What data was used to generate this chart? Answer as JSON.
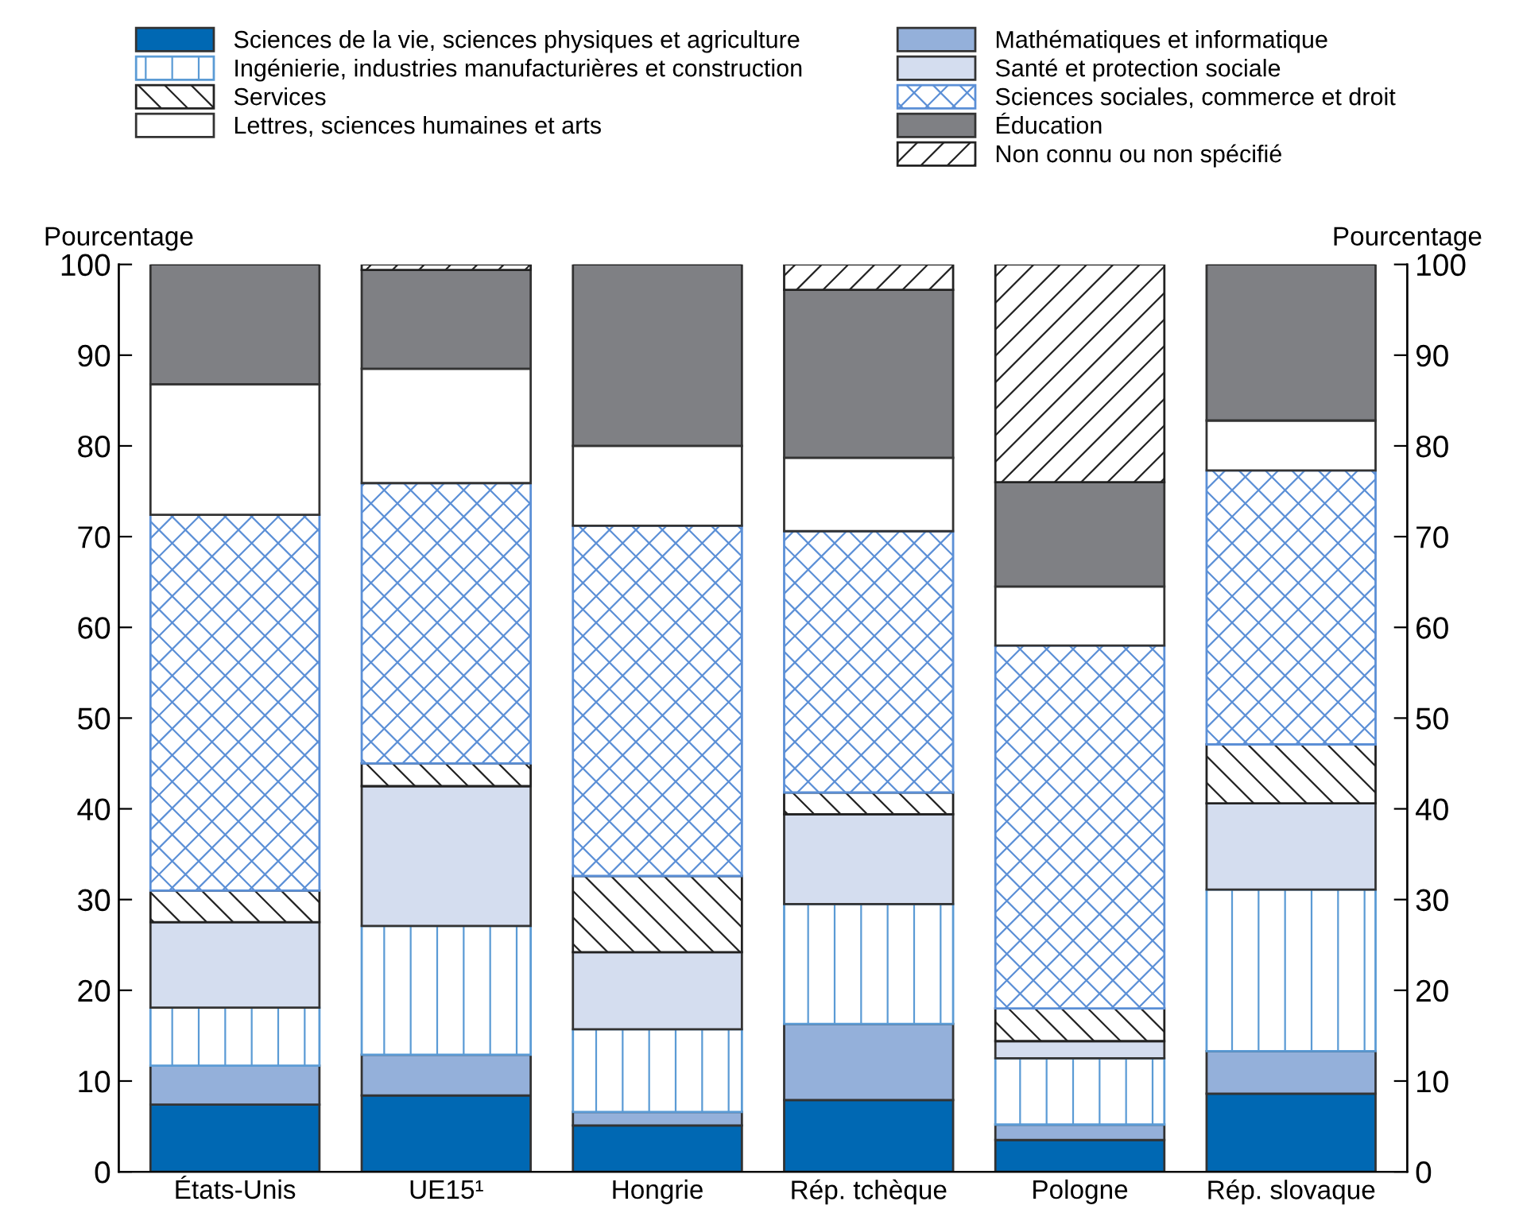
{
  "chart_data": {
    "type": "bar",
    "stacked": true,
    "categories": [
      "États-Unis",
      "UE15¹",
      "Hongrie",
      "Rép. tchèque",
      "Pologne",
      "Rép. slovaque"
    ],
    "ylabel": "Pourcentage",
    "y2label": "Pourcentage",
    "ylim": [
      0,
      100
    ],
    "yticks": [
      0,
      10,
      20,
      30,
      40,
      50,
      60,
      70,
      80,
      90,
      100
    ],
    "y2lim": [
      0,
      100
    ],
    "y2ticks": [
      0,
      10,
      20,
      30,
      40,
      50,
      60,
      70,
      80,
      90,
      100
    ],
    "legend": "top",
    "grid": false,
    "series": [
      {
        "name": "Sciences de la vie, sciences physiques et agriculture",
        "color": "#0068b3",
        "values": [
          7.4,
          8.4,
          5.1,
          7.9,
          3.5,
          8.6
        ]
      },
      {
        "name": "Mathématiques et informatique",
        "color": "#94b0da",
        "values": [
          4.3,
          4.5,
          1.5,
          8.4,
          1.7,
          4.7
        ]
      },
      {
        "name": "Ingénierie, industries manufacturières et construction",
        "color": "#5b9bd5",
        "values": [
          6.4,
          14.2,
          9.1,
          13.2,
          7.3,
          17.8
        ]
      },
      {
        "name": "Santé et protection sociale",
        "color": "#d4ddef",
        "values": [
          9.4,
          15.4,
          8.5,
          9.9,
          1.9,
          9.5
        ]
      },
      {
        "name": "Services",
        "color": "#222222",
        "values": [
          3.5,
          2.5,
          8.4,
          2.4,
          3.6,
          6.5
        ]
      },
      {
        "name": "Sciences sociales, commerce et droit",
        "color": "#5b8fd6",
        "values": [
          41.4,
          30.9,
          38.6,
          28.8,
          40.0,
          30.2
        ]
      },
      {
        "name": "Lettres, sciences humaines et arts",
        "color": "#ffffff",
        "values": [
          14.4,
          12.6,
          8.8,
          8.1,
          6.5,
          5.5
        ]
      },
      {
        "name": "Éducation",
        "color": "#7f8084",
        "values": [
          13.2,
          10.9,
          20.0,
          18.5,
          11.5,
          17.2
        ]
      },
      {
        "name": "Non connu ou non spécifié",
        "color": "#222222",
        "values": [
          0,
          0.6,
          0,
          2.8,
          24.0,
          0
        ]
      }
    ]
  }
}
